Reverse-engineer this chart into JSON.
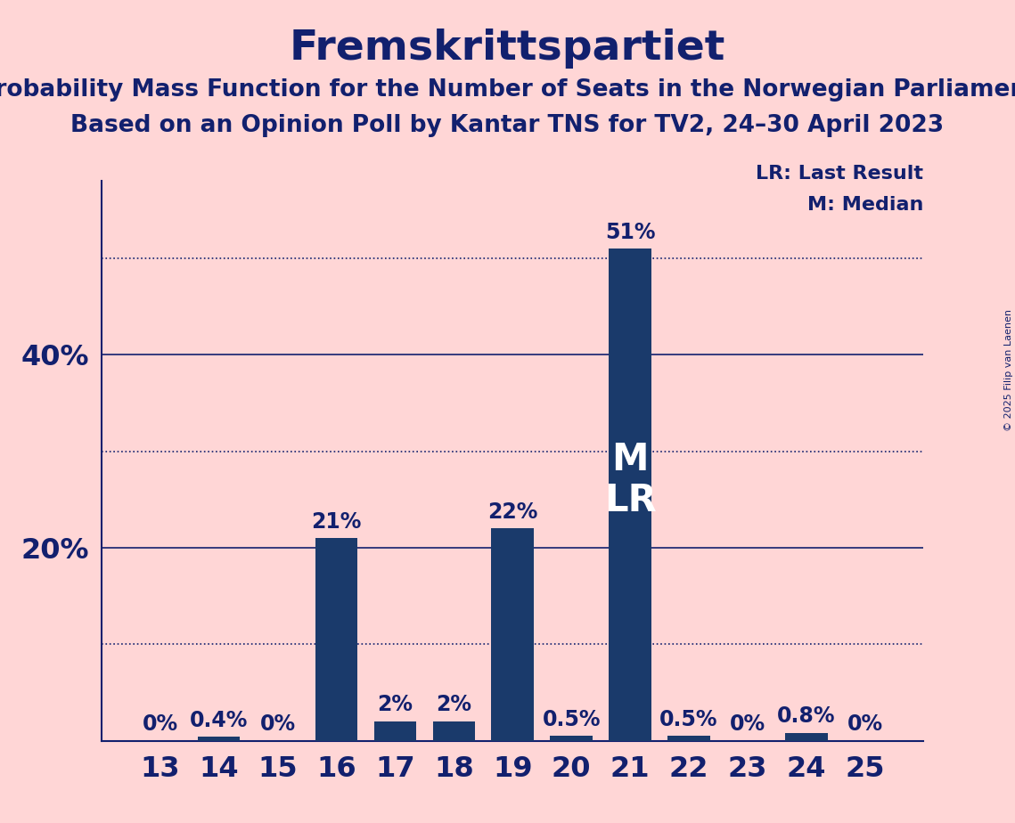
{
  "title": "Fremskrittspartiet",
  "subtitle1": "Probability Mass Function for the Number of Seats in the Norwegian Parliament",
  "subtitle2": "Based on an Opinion Poll by Kantar TNS for TV2, 24–30 April 2023",
  "copyright": "© 2025 Filip van Laenen",
  "categories": [
    13,
    14,
    15,
    16,
    17,
    18,
    19,
    20,
    21,
    22,
    23,
    24,
    25
  ],
  "values": [
    0.0,
    0.4,
    0.0,
    21.0,
    2.0,
    2.0,
    22.0,
    0.5,
    51.0,
    0.5,
    0.0,
    0.8,
    0.0
  ],
  "value_labels": [
    "0%",
    "0.4%",
    "0%",
    "21%",
    "2%",
    "2%",
    "22%",
    "0.5%",
    "51%",
    "0.5%",
    "0%",
    "0.8%",
    "0%"
  ],
  "bar_color": "#1a3a6b",
  "background_color": "#ffd6d6",
  "text_color": "#12206e",
  "title_fontsize": 34,
  "subtitle_fontsize": 19,
  "label_fontsize": 17,
  "tick_fontsize": 23,
  "ytick_labels": [
    "20%",
    "40%"
  ],
  "ytick_values": [
    20,
    40
  ],
  "solid_gridlines": [
    20,
    40
  ],
  "dotted_gridlines": [
    10,
    30,
    50
  ],
  "ylim": [
    0,
    58
  ],
  "median_seat": 21,
  "last_result_seat": 21,
  "legend_lr": "LR: Last Result",
  "legend_m": "M: Median",
  "ml_fontsize": 30
}
